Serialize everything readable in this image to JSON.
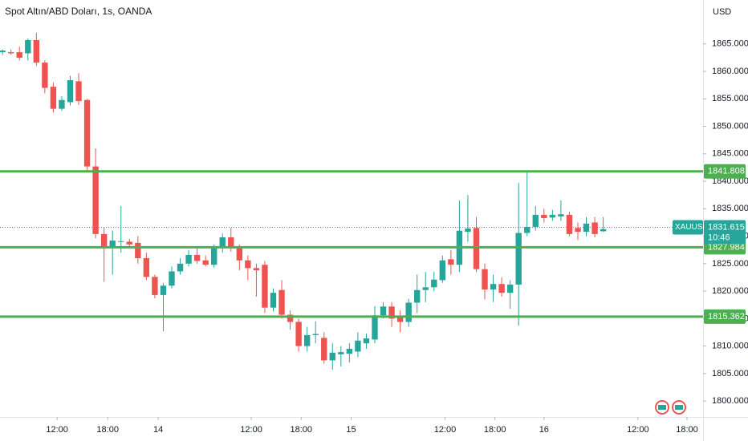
{
  "chart_data": {
    "type": "candlestick",
    "title": "Spot Altın/ABD Doları, 1s, OANDA",
    "currency": "USD",
    "symbol": "XAUUSD",
    "countdown": "10:46",
    "up_color": "#26a69a",
    "down_color": "#ef5350",
    "level_color": "#4caf50",
    "x": [
      0,
      1,
      2,
      3,
      4,
      5,
      6,
      7,
      8,
      9,
      10,
      11,
      12,
      13,
      14,
      15,
      16,
      17,
      18,
      19,
      20,
      21,
      22,
      23,
      24,
      25,
      26,
      27,
      28,
      29,
      30,
      31,
      32,
      33,
      34,
      35,
      36,
      37,
      38,
      39,
      40,
      41,
      42,
      43,
      44,
      45,
      46,
      47,
      48,
      49,
      50,
      51,
      52,
      53,
      54,
      55,
      56,
      57,
      58,
      59,
      60,
      61,
      62,
      63,
      64,
      65,
      66,
      67,
      68,
      69,
      70,
      71
    ],
    "open": [
      1863.5,
      1863.5,
      1863.5,
      1863.3,
      1865.7,
      1861.6,
      1857.2,
      1853.2,
      1854.4,
      1858.2,
      1854.8,
      1842.7,
      1830.4,
      1827.8,
      1829,
      1829,
      1828.8,
      1826,
      1822.6,
      1819.3,
      1821,
      1823.6,
      1825,
      1826.6,
      1825.6,
      1824.8,
      1827.8,
      1829.8,
      1828,
      1825.6,
      1824.2,
      1824.8,
      1817,
      1820.2,
      1815.7,
      1814.4,
      1810,
      1812,
      1811.5,
      1807.4,
      1808.5,
      1808.6,
      1809,
      1810.5,
      1811.2,
      1815.6,
      1817.2,
      1815.2,
      1814.4,
      1817.9,
      1820.2,
      1820.7,
      1822,
      1825.8,
      1824.8,
      1830.8,
      1831.5,
      1824,
      1820.3,
      1821.3,
      1819.7,
      1821.2,
      1830.6,
      1831.7,
      1833.9,
      1833.4,
      1833.6,
      1833.9,
      1831.5,
      1830.8,
      1832.5,
      1830.9
    ],
    "high": [
      1864,
      1864,
      1864.5,
      1866,
      1867,
      1862,
      1858,
      1855.5,
      1859.2,
      1859.7,
      1855,
      1846,
      1831.7,
      1831,
      1835.5,
      1829.5,
      1830,
      1827,
      1823,
      1821.5,
      1824.5,
      1826,
      1827.5,
      1828,
      1826.5,
      1828.5,
      1830.5,
      1831.5,
      1828.5,
      1826.5,
      1825,
      1825.5,
      1820.5,
      1822,
      1816.5,
      1815,
      1813.5,
      1814.5,
      1812.5,
      1810.5,
      1810,
      1810.5,
      1812.5,
      1812.3,
      1817.3,
      1818,
      1818,
      1816.5,
      1818.6,
      1823,
      1823.5,
      1823.5,
      1826.5,
      1827.5,
      1836.5,
      1837.5,
      1833.5,
      1825,
      1823,
      1822.5,
      1822,
      1839.7,
      1841.6,
      1835.5,
      1835,
      1834.8,
      1836.5,
      1834.5,
      1832.5,
      1833.5,
      1833.5,
      1833.5
    ],
    "low": [
      1863,
      1863,
      1862,
      1862,
      1861,
      1856,
      1852.5,
      1852.8,
      1853.8,
      1853.9,
      1842,
      1829.6,
      1821.7,
      1823,
      1827,
      1828,
      1825,
      1822,
      1818.7,
      1812.7,
      1820.5,
      1823,
      1824.5,
      1825,
      1824.5,
      1824.3,
      1827,
      1827.2,
      1823.8,
      1822,
      1819,
      1816,
      1816.3,
      1815,
      1813,
      1809,
      1809,
      1810.5,
      1806.8,
      1805.7,
      1806.3,
      1807,
      1808,
      1809.5,
      1810.5,
      1815,
      1813.5,
      1812.5,
      1813.5,
      1816,
      1818,
      1820,
      1821.5,
      1823,
      1823.5,
      1829,
      1823.5,
      1818.5,
      1818,
      1819,
      1816.8,
      1813.7,
      1830,
      1831,
      1832.5,
      1832.8,
      1832.8,
      1830,
      1829.3,
      1830,
      1829.8,
      1830.8
    ],
    "close": [
      1863.8,
      1863.3,
      1862.5,
      1865.7,
      1861.6,
      1857,
      1853.2,
      1854.8,
      1858.4,
      1854.6,
      1842.7,
      1830.4,
      1827.8,
      1829.2,
      1829.1,
      1828.5,
      1826,
      1822.6,
      1819.3,
      1821,
      1823.6,
      1825,
      1826.6,
      1825.5,
      1824.8,
      1827.8,
      1829.8,
      1828,
      1825.6,
      1824.2,
      1823.8,
      1817,
      1819.7,
      1815.7,
      1814.4,
      1810,
      1812,
      1812.2,
      1807.4,
      1808.8,
      1808.9,
      1809.5,
      1811,
      1811.4,
      1815.6,
      1817.2,
      1815,
      1814.4,
      1817.9,
      1820.2,
      1820.7,
      1822.1,
      1825.6,
      1824.8,
      1831,
      1831.4,
      1824,
      1820.3,
      1821.3,
      1819.7,
      1821.2,
      1830.6,
      1831.7,
      1833.9,
      1833.3,
      1833.9,
      1834,
      1830.4,
      1830.8,
      1832.3,
      1830.4,
      1831.3
    ],
    "levels": [
      1841.808,
      1827.984,
      1815.362
    ],
    "last_price": 1831.615,
    "xlim": [
      -0.3,
      82.8
    ],
    "ylim": [
      1797.1,
      1873.0
    ],
    "xticks": [
      {
        "value": 6.45,
        "label": "12:00"
      },
      {
        "value": 12.43,
        "label": "18:00"
      },
      {
        "value": 18.4,
        "label": "14"
      },
      {
        "value": 29.4,
        "label": "12:00"
      },
      {
        "value": 35.3,
        "label": "18:00"
      },
      {
        "value": 41.2,
        "label": "15"
      },
      {
        "value": 52.3,
        "label": "12:00"
      },
      {
        "value": 58.2,
        "label": "18:00"
      },
      {
        "value": 64.0,
        "label": "16"
      },
      {
        "value": 75.1,
        "label": "12:00"
      },
      {
        "value": 80.9,
        "label": "18:00"
      }
    ],
    "yticks": [
      {
        "value": 1800,
        "label": "1800.000"
      },
      {
        "value": 1805,
        "label": "1805.000"
      },
      {
        "value": 1810,
        "label": "1810.000"
      },
      {
        "value": 1815,
        "label": "1815.000"
      },
      {
        "value": 1820,
        "label": "1820.000"
      },
      {
        "value": 1825,
        "label": "1825.000"
      },
      {
        "value": 1830,
        "label": "1830.000"
      },
      {
        "value": 1835,
        "label": "1835.000"
      },
      {
        "value": 1840,
        "label": "1840.000"
      },
      {
        "value": 1845,
        "label": "1845.000"
      },
      {
        "value": 1850,
        "label": "1850.000"
      },
      {
        "value": 1855,
        "label": "1855.000"
      },
      {
        "value": 1860,
        "label": "1860.000"
      },
      {
        "value": 1865,
        "label": "1865.000"
      }
    ]
  }
}
